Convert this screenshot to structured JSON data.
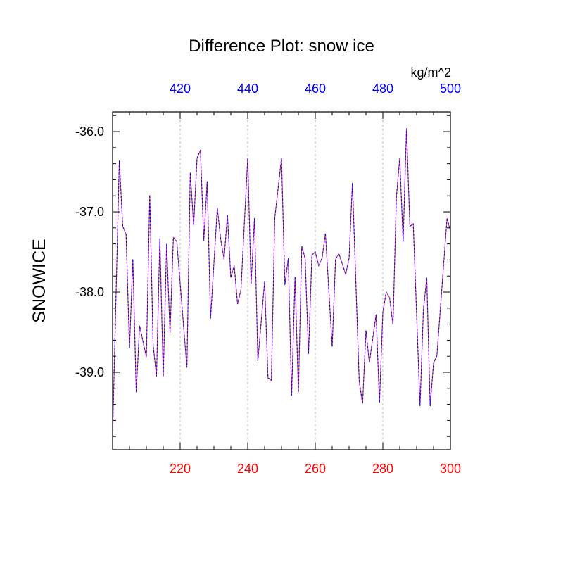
{
  "chart_data": {
    "type": "line",
    "title": "Difference Plot: snow ice",
    "ylabel": "SNOWICE",
    "top_axis_units": "kg/m^2",
    "xlim": [
      200,
      300
    ],
    "top_xlim": [
      400,
      500
    ],
    "ylim": [
      -39.965,
      -35.754
    ],
    "x_ticks": [
      220,
      240,
      260,
      280,
      300
    ],
    "top_x_ticks": [
      420,
      440,
      460,
      480,
      500
    ],
    "y_ticks": [
      "-36.0",
      "-37.0",
      "-38.0",
      "-39.0"
    ],
    "y_tick_values": [
      -36,
      -37,
      -38,
      -39
    ],
    "grid": "vertical dotted at major x ticks",
    "colors": {
      "bottom_axis_labels": "#ff0000",
      "top_axis_labels": "#0000ff",
      "series_solid": "#ff0000",
      "series_dashed": "#0000ff",
      "grid": "#bbbbbb"
    },
    "x": [
      200,
      202,
      203,
      204,
      205,
      206,
      207,
      208,
      210,
      211,
      212,
      213,
      214,
      215,
      216,
      217,
      218,
      219,
      222,
      223,
      224,
      225,
      226,
      227,
      228,
      229,
      231,
      232,
      233,
      234,
      235,
      236,
      237,
      238,
      240,
      241,
      242,
      243,
      245,
      246,
      247,
      248,
      250,
      251,
      252,
      253,
      254,
      255,
      256,
      257,
      258,
      259,
      260,
      261,
      262,
      263,
      265,
      266,
      267,
      269,
      270,
      271,
      273,
      274,
      275,
      276,
      278,
      279,
      280,
      281,
      282,
      283,
      284,
      285,
      286,
      287,
      288,
      289,
      291,
      292,
      293,
      294,
      295,
      296,
      299,
      300
    ],
    "series": [
      {
        "style": "solid",
        "values": [
          -39.78,
          -36.36,
          -37.18,
          -37.28,
          -38.7,
          -37.59,
          -39.25,
          -38.42,
          -38.81,
          -36.79,
          -38.66,
          -39.05,
          -37.33,
          -39.05,
          -37.4,
          -38.51,
          -37.32,
          -37.37,
          -38.94,
          -36.51,
          -37.17,
          -36.33,
          -36.23,
          -37.36,
          -36.62,
          -38.33,
          -36.95,
          -37.34,
          -37.59,
          -37.04,
          -37.82,
          -37.67,
          -38.15,
          -37.97,
          -36.33,
          -37.9,
          -37.08,
          -38.86,
          -37.87,
          -39.07,
          -39.1,
          -37.08,
          -36.33,
          -37.91,
          -37.58,
          -39.29,
          -37.81,
          -39.25,
          -37.43,
          -37.58,
          -38.77,
          -37.54,
          -37.5,
          -37.67,
          -37.58,
          -37.27,
          -38.68,
          -37.59,
          -37.52,
          -37.78,
          -37.58,
          -36.64,
          -39.11,
          -39.39,
          -38.48,
          -38.88,
          -38.28,
          -39.38,
          -38.25,
          -38.0,
          -38.07,
          -38.41,
          -36.82,
          -36.33,
          -37.37,
          -35.96,
          -37.18,
          -37.15,
          -39.42,
          -38.22,
          -37.82,
          -39.42,
          -38.89,
          -38.79,
          -37.08,
          -37.24
        ]
      },
      {
        "style": "dashed",
        "values": [
          -39.78,
          -36.36,
          -37.18,
          -37.28,
          -38.7,
          -37.59,
          -39.25,
          -38.42,
          -38.81,
          -36.79,
          -38.66,
          -39.05,
          -37.33,
          -39.05,
          -37.4,
          -38.51,
          -37.32,
          -37.37,
          -38.94,
          -36.51,
          -37.17,
          -36.33,
          -36.23,
          -37.36,
          -36.62,
          -38.33,
          -36.95,
          -37.34,
          -37.59,
          -37.04,
          -37.82,
          -37.67,
          -38.15,
          -37.97,
          -36.33,
          -37.9,
          -37.08,
          -38.86,
          -37.87,
          -39.07,
          -39.1,
          -37.08,
          -36.33,
          -37.91,
          -37.58,
          -39.29,
          -37.81,
          -39.25,
          -37.43,
          -37.58,
          -38.77,
          -37.54,
          -37.5,
          -37.67,
          -37.58,
          -37.27,
          -38.68,
          -37.59,
          -37.52,
          -37.78,
          -37.58,
          -36.64,
          -39.11,
          -39.39,
          -38.48,
          -38.88,
          -38.28,
          -39.38,
          -38.25,
          -38.0,
          -38.07,
          -38.41,
          -36.82,
          -36.33,
          -37.37,
          -35.96,
          -37.18,
          -37.15,
          -39.42,
          -38.22,
          -37.82,
          -39.42,
          -38.89,
          -38.79,
          -37.08,
          -37.24
        ]
      }
    ]
  }
}
